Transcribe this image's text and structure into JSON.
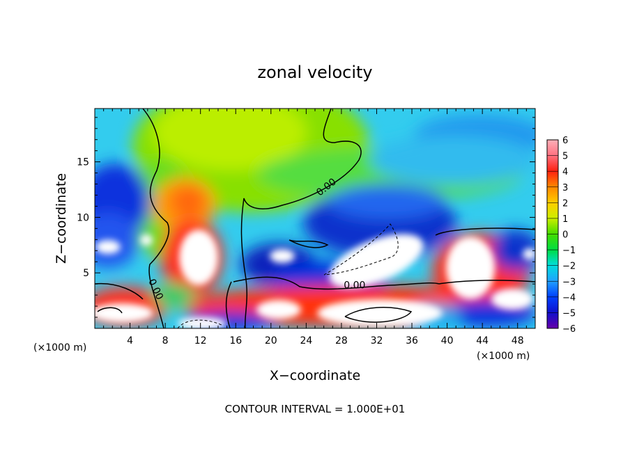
{
  "chart_data": {
    "type": "heatmap",
    "title": "zonal velocity",
    "xlabel": "X−coordinate",
    "ylabel": "Z−coordinate",
    "x_scale_note": "(×1000 m)",
    "y_scale_note": "(×1000 m)",
    "xlim": [
      0,
      50
    ],
    "ylim": [
      0,
      19.8
    ],
    "x_ticks": [
      4,
      8,
      12,
      16,
      20,
      24,
      28,
      32,
      36,
      40,
      44,
      48
    ],
    "x_tick_labels": [
      "4",
      "8",
      "12",
      "16",
      "20",
      "24",
      "28",
      "32",
      "36",
      "40",
      "44",
      "48"
    ],
    "y_ticks": [
      5,
      10,
      15
    ],
    "y_tick_labels": [
      "5",
      "10",
      "15"
    ],
    "colorbar": {
      "range": [
        -6,
        6
      ],
      "tick_values": [
        6,
        5,
        4,
        3,
        2,
        1,
        0,
        -1,
        -2,
        -3,
        -4,
        -5,
        -6
      ],
      "tick_labels": [
        "6",
        "5",
        "4",
        "3",
        "2",
        "1",
        "0",
        "−1",
        "−2",
        "−3",
        "−4",
        "−5",
        "−6"
      ],
      "colors": [
        "#ffb0b8",
        "#ff7080",
        "#ff2010",
        "#ff8800",
        "#ffcc00",
        "#ccee00",
        "#44dd00",
        "#00dd44",
        "#00dddd",
        "#20a0ff",
        "#0040ff",
        "#1010cc",
        "#6600aa"
      ]
    },
    "contour_labels": [
      {
        "text": "0.00",
        "x": 26.5,
        "y": 12.5,
        "rotate": -38
      },
      {
        "text": "0.00",
        "x": 6.6,
        "y": 3.4,
        "rotate": 65
      },
      {
        "text": "0.00",
        "x": 29.5,
        "y": 3.6,
        "rotate": 0
      }
    ],
    "footer": "CONTOUR INTERVAL = 1.000E+01"
  }
}
